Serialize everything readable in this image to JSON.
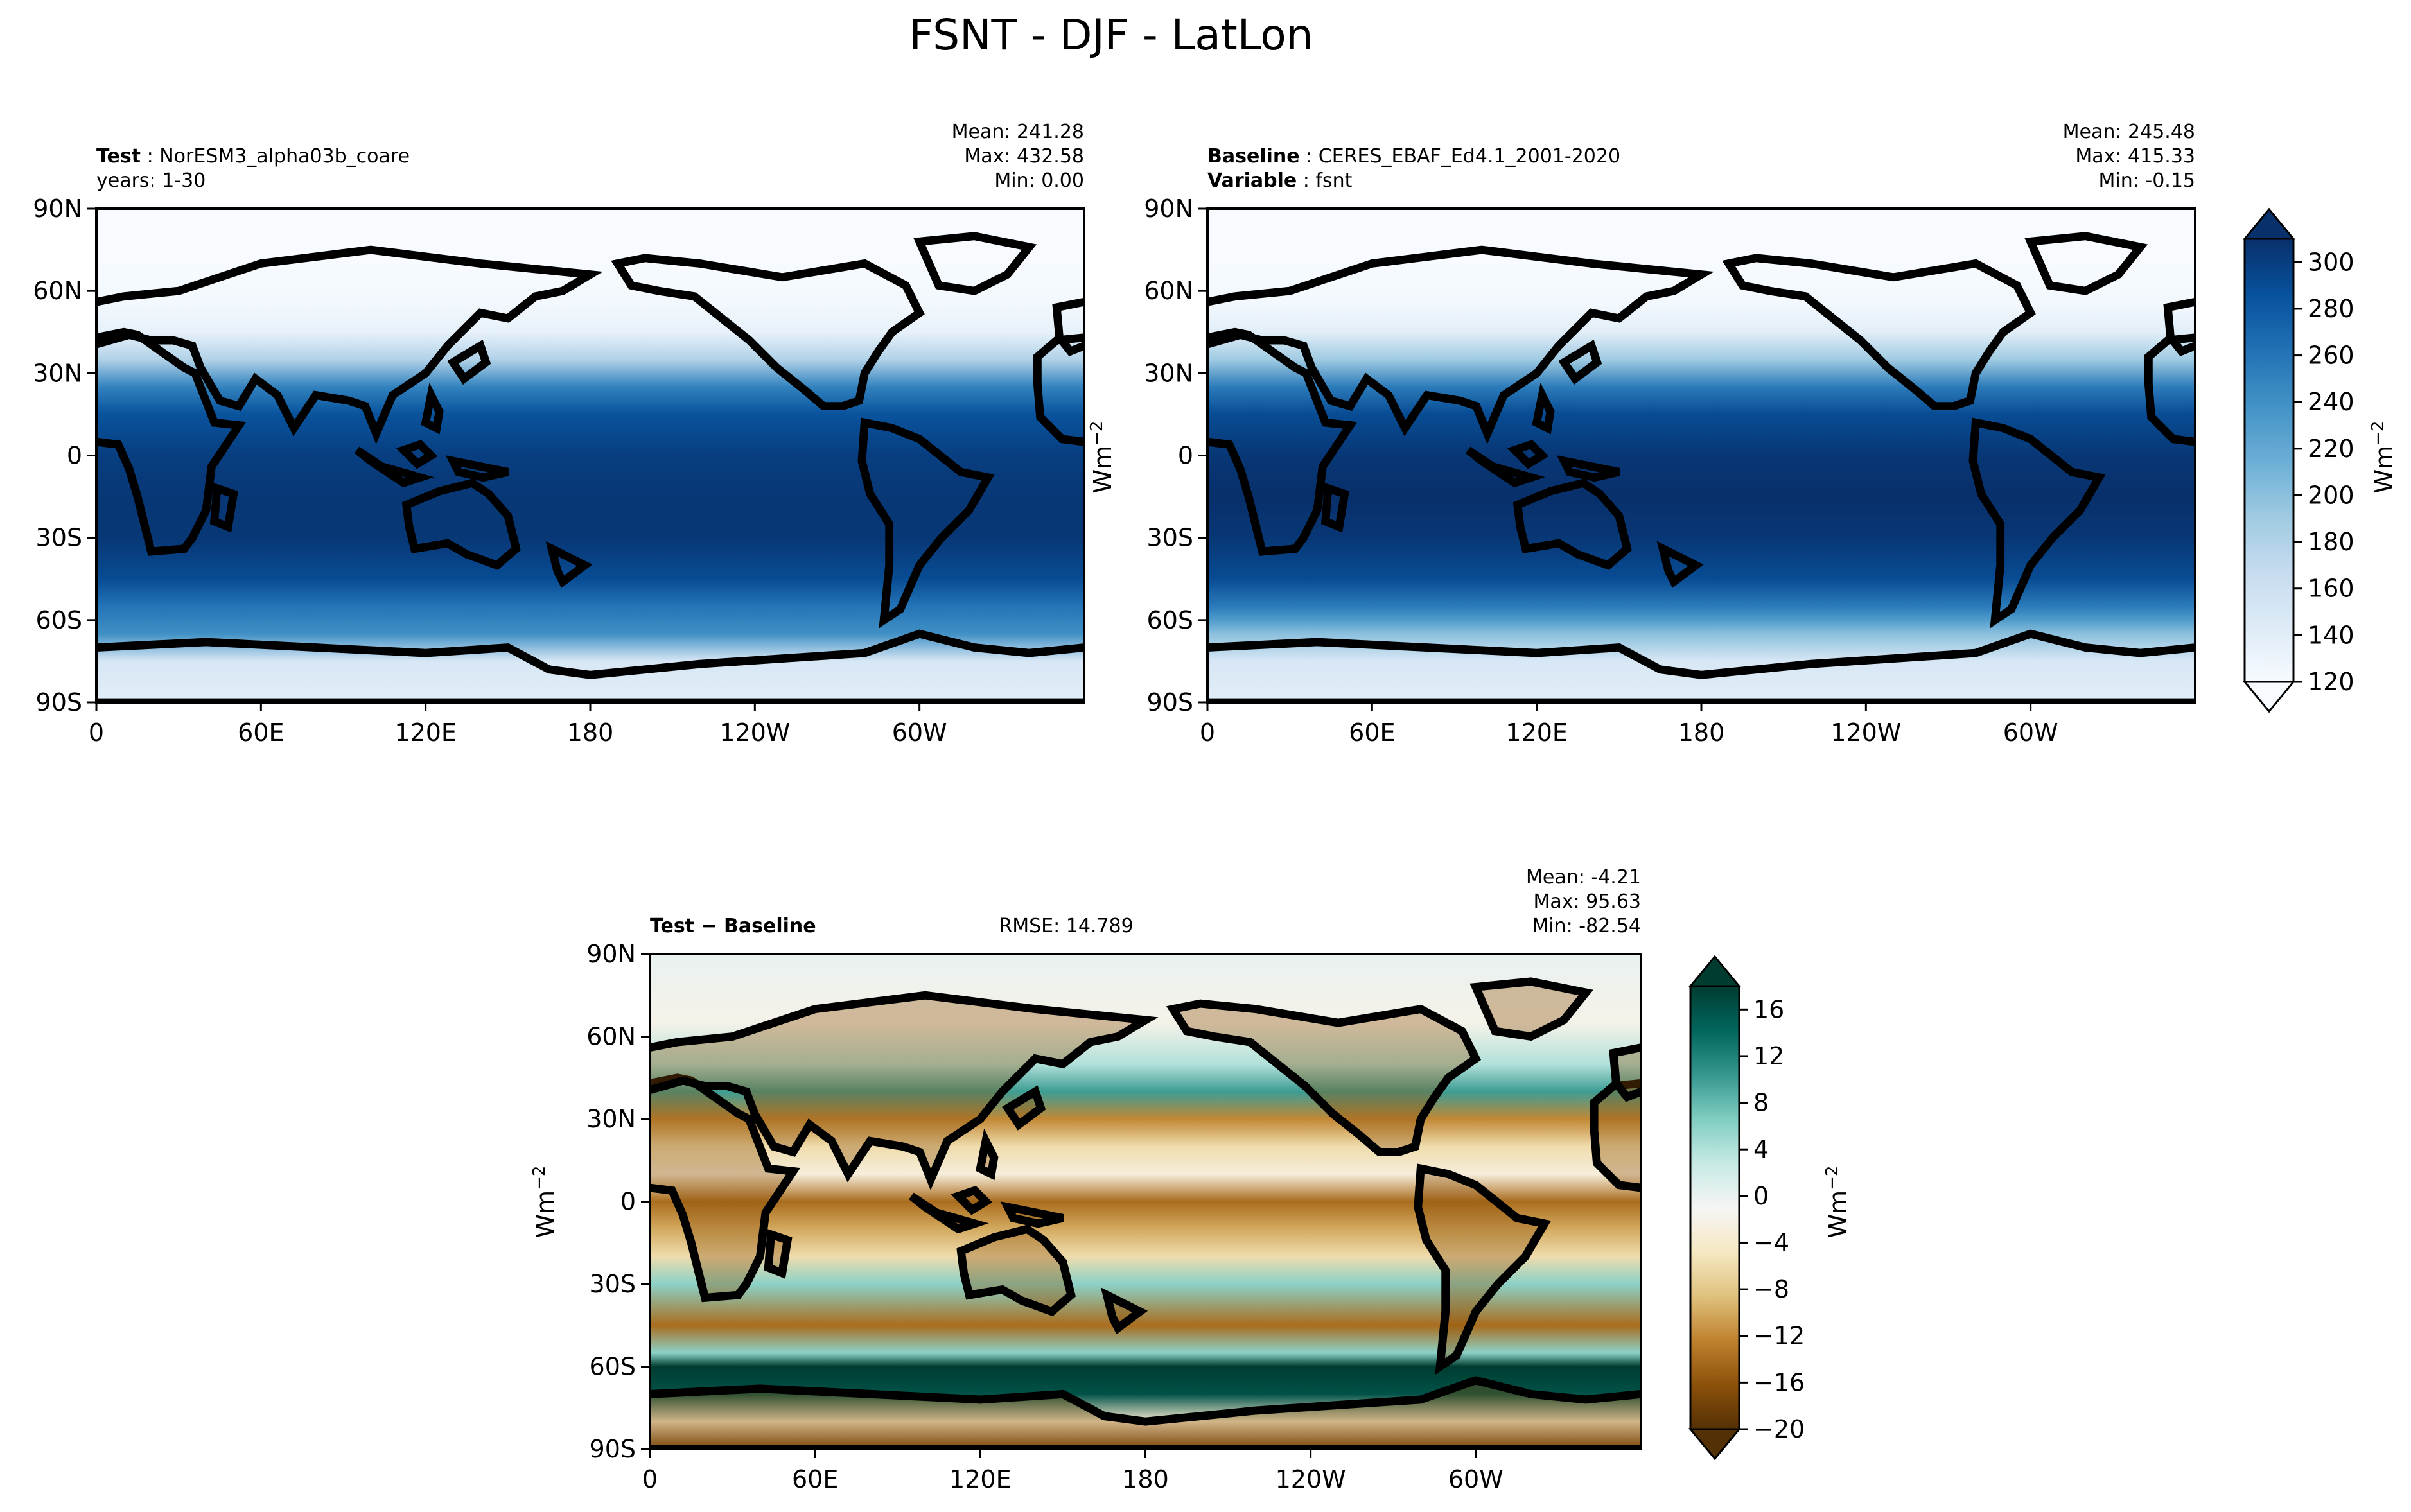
{
  "title": "FSNT - DJF - LatLon",
  "units_label": "Wm",
  "units_exp": "−2",
  "chart_data": [
    {
      "type": "heatmap",
      "panel": "test",
      "label_bold": "Test",
      "label_text": "NorESM3_alpha03b_coare",
      "line2": "years: 1-30",
      "stats": {
        "mean": "Mean: 241.28",
        "max": "Max: 432.58",
        "min": "Min:  0.00"
      },
      "x_ticks": [
        "0",
        "60E",
        "120E",
        "180",
        "120W",
        "60W"
      ],
      "y_ticks": [
        "90N",
        "60N",
        "30N",
        "0",
        "30S",
        "60S",
        "90S"
      ],
      "xlim": [
        0,
        360
      ],
      "ylim": [
        -90,
        90
      ],
      "zonal_profile_lat": [
        90,
        70,
        55,
        45,
        35,
        25,
        15,
        0,
        -15,
        -30,
        -45,
        -55,
        -60,
        -65,
        -75,
        -90
      ],
      "zonal_profile_val": [
        120,
        120,
        125,
        135,
        180,
        250,
        285,
        300,
        305,
        305,
        290,
        260,
        250,
        240,
        150,
        140
      ]
    },
    {
      "type": "heatmap",
      "panel": "baseline",
      "label_bold": "Baseline",
      "label_text": "CERES_EBAF_Ed4.1_2001-2020",
      "line2_bold": "Variable",
      "line2_text": "fsnt",
      "stats": {
        "mean": "Mean: 245.48",
        "max": "Max: 415.33",
        "min": "Min: -0.15"
      },
      "x_ticks": [
        "0",
        "60E",
        "120E",
        "180",
        "120W",
        "60W"
      ],
      "y_ticks": [
        "90N",
        "60N",
        "30N",
        "0",
        "30S",
        "60S",
        "90S"
      ],
      "xlim": [
        0,
        360
      ],
      "ylim": [
        -90,
        90
      ],
      "zonal_profile_lat": [
        90,
        70,
        55,
        45,
        35,
        25,
        15,
        0,
        -15,
        -30,
        -45,
        -55,
        -60,
        -65,
        -75,
        -90
      ],
      "zonal_profile_val": [
        120,
        120,
        125,
        140,
        190,
        255,
        290,
        305,
        310,
        305,
        290,
        255,
        230,
        200,
        150,
        140
      ]
    },
    {
      "type": "heatmap",
      "panel": "difference",
      "label_bold": "Test",
      "label_minus": "−",
      "label_bold2": "Baseline",
      "rmse": "RMSE: 14.789",
      "stats": {
        "mean": "Mean: -4.21",
        "max": "Max: 95.63",
        "min": "Min: -82.54"
      },
      "x_ticks": [
        "0",
        "60E",
        "120E",
        "180",
        "120W",
        "60W"
      ],
      "y_ticks": [
        "90N",
        "60N",
        "30N",
        "0",
        "30S",
        "60S",
        "90S"
      ],
      "xlim": [
        0,
        360
      ],
      "ylim": [
        -90,
        90
      ],
      "zonal_profile_lat": [
        90,
        65,
        50,
        40,
        30,
        20,
        10,
        0,
        -10,
        -20,
        -30,
        -45,
        -55,
        -60,
        -70,
        -80,
        -90
      ],
      "zonal_profile_val": [
        0,
        -2,
        4,
        10,
        -12,
        -6,
        -3,
        -14,
        -10,
        -6,
        6,
        -14,
        6,
        18,
        16,
        -4,
        -18
      ]
    }
  ],
  "colorbars": [
    {
      "name": "absolute",
      "cmap": "Blues",
      "ticks": [
        "120",
        "140",
        "160",
        "180",
        "200",
        "220",
        "240",
        "260",
        "280",
        "300"
      ],
      "min": 120,
      "max": 310,
      "stops": [
        "#f7fbff",
        "#deebf7",
        "#c6dbef",
        "#9ecae1",
        "#6baed6",
        "#4292c6",
        "#2171b5",
        "#08519c",
        "#08306b"
      ]
    },
    {
      "name": "difference",
      "cmap": "BrBG",
      "ticks": [
        "−20",
        "−16",
        "−12",
        "−8",
        "−4",
        "0",
        "4",
        "8",
        "12",
        "16"
      ],
      "min": -20,
      "max": 18,
      "stops": [
        "#543005",
        "#8c510a",
        "#bf812d",
        "#dfc27d",
        "#f6e8c3",
        "#f5f5f5",
        "#c7eae5",
        "#80cdc1",
        "#35978f",
        "#01665e",
        "#003c30"
      ]
    }
  ]
}
